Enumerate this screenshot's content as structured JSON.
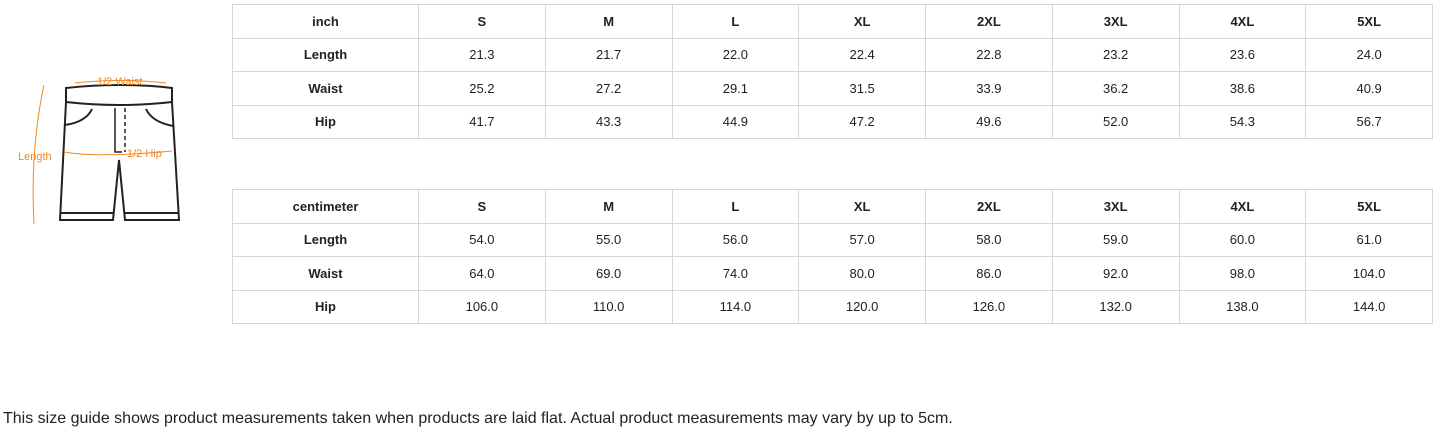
{
  "diagram": {
    "labels": {
      "waist": "1/2 Waist",
      "hip": "1/2 Hip",
      "length": "Length"
    },
    "accent": "#f08a24"
  },
  "inch_table": {
    "header": [
      "inch",
      "S",
      "M",
      "L",
      "XL",
      "2XL",
      "3XL",
      "4XL",
      "5XL"
    ],
    "rows": [
      [
        "Length",
        "21.3",
        "21.7",
        "22.0",
        "22.4",
        "22.8",
        "23.2",
        "23.6",
        "24.0"
      ],
      [
        "Waist",
        "25.2",
        "27.2",
        "29.1",
        "31.5",
        "33.9",
        "36.2",
        "38.6",
        "40.9"
      ],
      [
        "Hip",
        "41.7",
        "43.3",
        "44.9",
        "47.2",
        "49.6",
        "52.0",
        "54.3",
        "56.7"
      ]
    ]
  },
  "cm_table": {
    "header": [
      "centimeter",
      "S",
      "M",
      "L",
      "XL",
      "2XL",
      "3XL",
      "4XL",
      "5XL"
    ],
    "rows": [
      [
        "Length",
        "54.0",
        "55.0",
        "56.0",
        "57.0",
        "58.0",
        "59.0",
        "60.0",
        "61.0"
      ],
      [
        "Waist",
        "64.0",
        "69.0",
        "74.0",
        "80.0",
        "86.0",
        "92.0",
        "98.0",
        "104.0"
      ],
      [
        "Hip",
        "106.0",
        "110.0",
        "114.0",
        "120.0",
        "126.0",
        "132.0",
        "138.0",
        "144.0"
      ]
    ]
  },
  "note": "This size guide shows product measurements taken when products are laid flat. Actual product measurements may vary by up to 5cm."
}
